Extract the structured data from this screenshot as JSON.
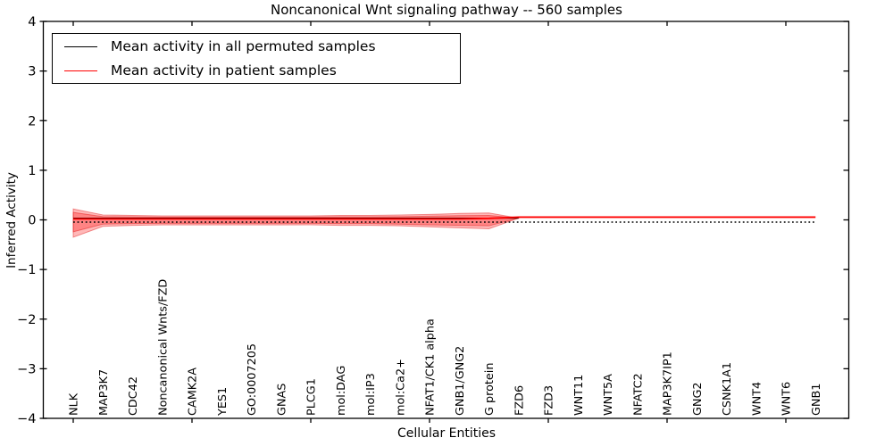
{
  "window": {
    "background": "#ffffff"
  },
  "chart_data": {
    "type": "line",
    "title": "Noncanonical Wnt signaling pathway -- 560 samples",
    "xlabel": "Cellular Entities",
    "ylabel": "Inferred Activity",
    "ylim": [
      -4,
      4
    ],
    "yticks": [
      -4,
      -3,
      -2,
      -1,
      0,
      1,
      2,
      3,
      4
    ],
    "xtick_every": 4,
    "grid": false,
    "legend_position": "upper left",
    "categories": [
      "NLK",
      "MAP3K7",
      "CDC42",
      "Noncanonical Wnts/FZD",
      "CAMK2A",
      "YES1",
      "GO:0007205",
      "GNAS",
      "PLCG1",
      "mol:DAG",
      "mol:IP3",
      "mol:Ca2+",
      "NFAT1/CK1 alpha",
      "GNB1/GNG2",
      "G protein",
      "FZD6",
      "FZD3",
      "WNT11",
      "WNT5A",
      "NFATC2",
      "MAP3K7IP1",
      "GNG2",
      "CSNK1A1",
      "WNT4",
      "WNT6",
      "GNB1"
    ],
    "series": [
      {
        "name": "Mean activity in all permuted samples",
        "color": "#000000",
        "style": "solid",
        "values": [
          0.035,
          0.035,
          0.035,
          0.035,
          0.035,
          0.035,
          0.035,
          0.035,
          0.035,
          0.035,
          0.035,
          0.035,
          0.035,
          0.035,
          0.035,
          0.035,
          null,
          null,
          null,
          null,
          null,
          null,
          null,
          null,
          null,
          null
        ]
      },
      {
        "name": "Mean activity in patient samples",
        "color": "#ff0000",
        "style": "solid",
        "values": [
          0.02,
          0.02,
          0.02,
          0.02,
          0.02,
          0.02,
          0.02,
          0.02,
          0.02,
          0.02,
          0.02,
          0.02,
          0.02,
          0.02,
          0.03,
          0.055,
          0.055,
          0.055,
          0.055,
          0.055,
          0.055,
          0.055,
          0.055,
          0.055,
          0.055,
          0.055
        ]
      }
    ],
    "reference_line": {
      "value": 0,
      "style": "dotted",
      "color": "#000000"
    },
    "bands": {
      "fill_color": "#ff0000",
      "fill_alpha": 0.28,
      "edge_color": "rgba(220,0,0,0.4)",
      "outer": {
        "top": [
          0.22,
          0.1,
          0.09,
          0.08,
          0.08,
          0.08,
          0.08,
          0.08,
          0.08,
          0.09,
          0.09,
          0.1,
          0.11,
          0.13,
          0.14,
          0.035
        ],
        "bottom": [
          -0.35,
          -0.13,
          -0.11,
          -0.1,
          -0.1,
          -0.1,
          -0.1,
          -0.1,
          -0.1,
          -0.11,
          -0.11,
          -0.12,
          -0.14,
          -0.16,
          -0.18,
          0.035
        ]
      },
      "inner": {
        "top": [
          0.15,
          0.065,
          0.06,
          0.055,
          0.055,
          0.055,
          0.055,
          0.055,
          0.055,
          0.06,
          0.06,
          0.065,
          0.075,
          0.085,
          0.09,
          0.035
        ],
        "bottom": [
          -0.24,
          -0.085,
          -0.075,
          -0.07,
          -0.07,
          -0.07,
          -0.07,
          -0.07,
          -0.07,
          -0.075,
          -0.075,
          -0.085,
          -0.1,
          -0.11,
          -0.12,
          0.035
        ]
      }
    }
  }
}
